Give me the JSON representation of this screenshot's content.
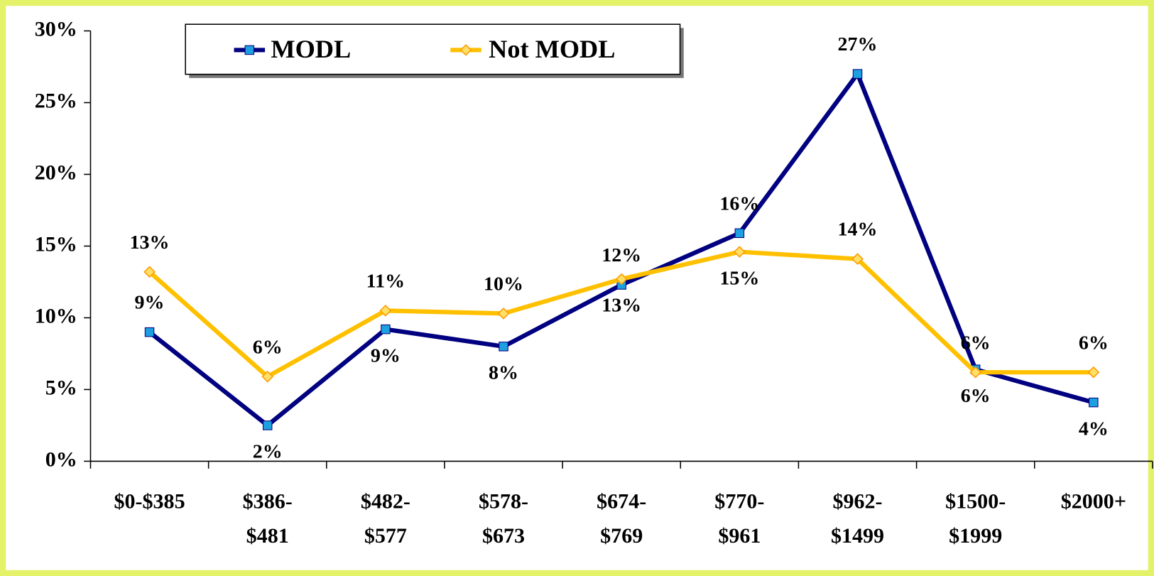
{
  "chart_data": {
    "type": "line",
    "categories": [
      "$0-$385",
      "$386-\n$481",
      "$482-\n$577",
      "$578-\n$673",
      "$674-\n$769",
      "$770-\n$961",
      "$962-\n$1499",
      "$1500-\n$1999",
      "$2000+"
    ],
    "series": [
      {
        "name": "MODL",
        "color": "#000080",
        "marker_color": "#1ea0e0",
        "values": [
          9.0,
          2.5,
          9.2,
          8.0,
          12.3,
          15.9,
          27.0,
          6.4,
          4.1
        ],
        "value_labels": [
          "9%",
          "2%",
          "9%",
          "8%",
          "12%",
          "16%",
          "27%",
          "6%",
          "4%"
        ]
      },
      {
        "name": "Not MODL",
        "color": "#ffc000",
        "marker_color": "#ff9900",
        "values": [
          13.2,
          5.9,
          10.5,
          10.3,
          12.7,
          14.6,
          14.1,
          6.2,
          6.2
        ],
        "value_labels": [
          "13%",
          "6%",
          "11%",
          "10%",
          "13%",
          "15%",
          "14%",
          "6%",
          "6%"
        ]
      }
    ],
    "ylim": [
      0,
      30
    ],
    "yticks": [
      {
        "value": 0,
        "label": "0%"
      },
      {
        "value": 5,
        "label": "5%"
      },
      {
        "value": 10,
        "label": "10%"
      },
      {
        "value": 15,
        "label": "15%"
      },
      {
        "value": 20,
        "label": "20%"
      },
      {
        "value": 25,
        "label": "25%"
      },
      {
        "value": 30,
        "label": "30%"
      }
    ]
  }
}
